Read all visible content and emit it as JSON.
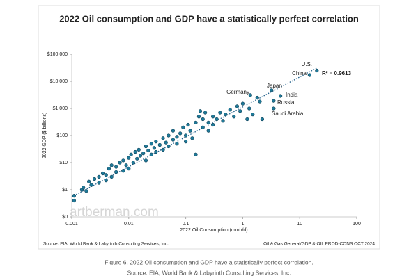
{
  "chart_data": {
    "type": "scatter",
    "title": "2022 Oil consumption and GDP have a statistically perfect correlation",
    "x_label": "2022 Oil Consumption (mmb/d)",
    "y_label": "2022 GDP ($ billions)",
    "log_x": true,
    "log_y": true,
    "color": "#1f7a99",
    "xlim": [
      0.001,
      100
    ],
    "xticks": [
      0.001,
      0.01,
      0.1,
      1,
      10,
      100
    ],
    "ylim": [
      0.1,
      100000
    ],
    "yticks": [
      {
        "value": 0.1,
        "label": "$0"
      },
      {
        "value": 1,
        "label": "$1"
      },
      {
        "value": 10,
        "label": "$10"
      },
      {
        "value": 100,
        "label": "$100"
      },
      {
        "value": 1000,
        "label": "$1,000"
      },
      {
        "value": 10000,
        "label": "$10,000"
      },
      {
        "value": 100000,
        "label": "$100,000"
      }
    ],
    "x": [
      0.0011,
      0.0011,
      0.0015,
      0.0016,
      0.0018,
      0.002,
      0.0022,
      0.0025,
      0.003,
      0.003,
      0.0035,
      0.004,
      0.004,
      0.0045,
      0.005,
      0.005,
      0.006,
      0.006,
      0.007,
      0.008,
      0.008,
      0.009,
      0.01,
      0.01,
      0.011,
      0.012,
      0.013,
      0.014,
      0.015,
      0.016,
      0.018,
      0.02,
      0.02,
      0.022,
      0.025,
      0.025,
      0.028,
      0.03,
      0.03,
      0.035,
      0.04,
      0.04,
      0.045,
      0.05,
      0.05,
      0.06,
      0.06,
      0.07,
      0.07,
      0.08,
      0.09,
      0.1,
      0.1,
      0.11,
      0.12,
      0.13,
      0.15,
      0.15,
      0.17,
      0.18,
      0.2,
      0.2,
      0.22,
      0.25,
      0.25,
      0.3,
      0.3,
      0.35,
      0.4,
      0.45,
      0.5,
      0.6,
      0.7,
      0.8,
      0.9,
      1,
      1.2,
      1.3,
      1.5,
      1.8,
      2,
      2.2,
      1.36,
      3.2,
      4.6,
      3.5,
      3.5,
      14.9,
      20
    ],
    "values": [
      0.4,
      0.6,
      1.0,
      1.2,
      0.9,
      2.0,
      1.5,
      2.5,
      3,
      1.8,
      4,
      2.2,
      3.5,
      6,
      3,
      8,
      4.5,
      7,
      10,
      5,
      12,
      8,
      15,
      6,
      20,
      10,
      25,
      14,
      30,
      18,
      22,
      40,
      12,
      28,
      50,
      20,
      35,
      60,
      25,
      45,
      80,
      30,
      55,
      100,
      40,
      70,
      150,
      90,
      50,
      120,
      200,
      100,
      60,
      250,
      150,
      80,
      300,
      20,
      500,
      800,
      200,
      400,
      700,
      300,
      150,
      500,
      250,
      400,
      700,
      350,
      600,
      900,
      500,
      1200,
      800,
      1500,
      400,
      1000,
      600,
      2500,
      1800,
      400,
      3100,
      4700,
      2900,
      1900,
      1000,
      17000,
      25000
    ],
    "trendline": {
      "x": [
        0.001,
        20
      ],
      "values": [
        0.55,
        31000
      ]
    },
    "annotations": [
      "U.S.",
      "China",
      "R² = 0.9613",
      "Japan",
      "Germany",
      "India",
      "Russia",
      "Saudi Arabia"
    ],
    "watermark": "artberman.com",
    "source_left": "Source: EIA, World Bank & Labyrinth Consulting Services, Inc.",
    "source_right": "Oil & Gas General/GDP & OIL PROD-CONS OCT 2024",
    "caption": [
      "Figure 6. 2022 Oil consumption and GDP have a statistically perfect correlation.",
      "Source: EIA, World Bank & Labyrinth Consulting Services, Inc."
    ]
  }
}
